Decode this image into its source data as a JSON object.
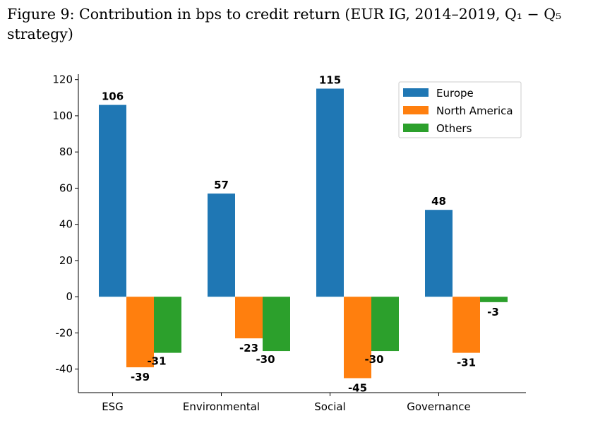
{
  "caption": "Figure 9: Contribution in bps to credit return (EUR IG, 2014–2019, Q₁ − Q₅ strategy)",
  "chart_data": {
    "type": "bar",
    "categories": [
      "ESG",
      "Environmental",
      "Social",
      "Governance"
    ],
    "series": [
      {
        "name": "Europe",
        "color": "#1f77b4",
        "values": [
          106,
          57,
          115,
          48
        ]
      },
      {
        "name": "North America",
        "color": "#ff7f0e",
        "values": [
          -39,
          -23,
          -45,
          -31
        ]
      },
      {
        "name": "Others",
        "color": "#2ca02c",
        "values": [
          -31,
          -30,
          -30,
          -3
        ]
      }
    ],
    "yticks": [
      120,
      100,
      80,
      60,
      40,
      20,
      0,
      -20,
      -40
    ],
    "ylim": [
      -53,
      123
    ],
    "grid": false,
    "legend_position": "top-right",
    "data_labels": true
  }
}
